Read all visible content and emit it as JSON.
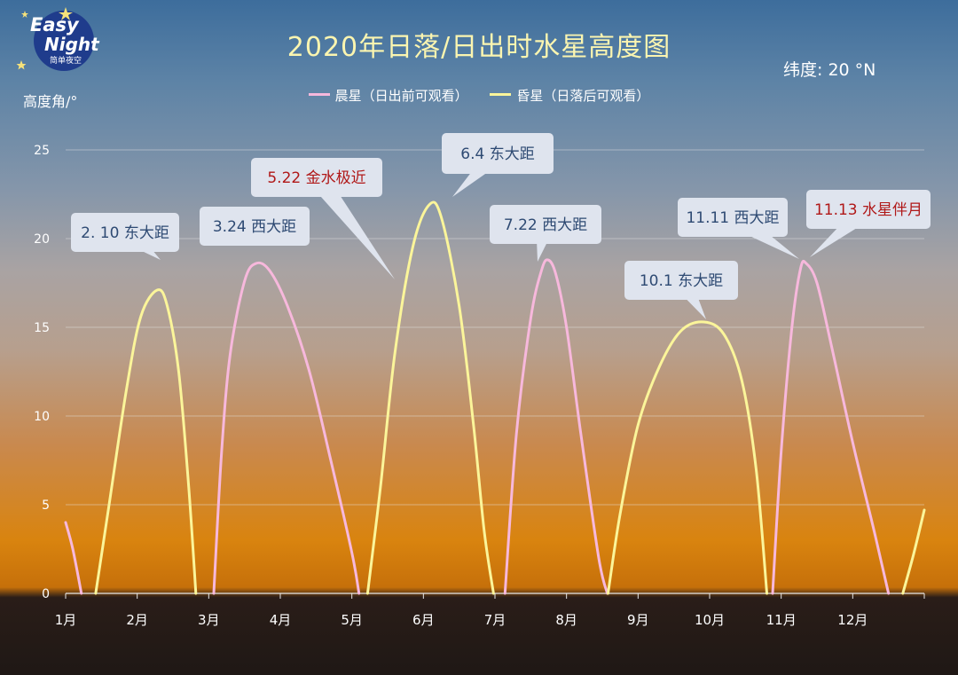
{
  "logo": {
    "line1": "Easy",
    "line2": "Night",
    "line3": "简单夜空"
  },
  "header": {
    "title": "2020年日落/日出时水星高度图",
    "latitude": "纬度:  20 °N",
    "ylabel": "高度角/°"
  },
  "legend": [
    {
      "label": "晨星（日出前可观看）",
      "color": "#f7b8dc"
    },
    {
      "label": "昏星（日落后可观看）",
      "color": "#fbf59a"
    }
  ],
  "chart_data": {
    "type": "line",
    "title": "2020年日落/日出时水星高度图",
    "ylabel": "高度角/°",
    "ylim": [
      0,
      25
    ],
    "xlim": [
      1,
      13
    ],
    "yticks": [
      0,
      5,
      10,
      15,
      20,
      25
    ],
    "xticks": [
      {
        "x": 1,
        "label": "1月"
      },
      {
        "x": 2,
        "label": "2月"
      },
      {
        "x": 3,
        "label": "3月"
      },
      {
        "x": 4,
        "label": "4月"
      },
      {
        "x": 5,
        "label": "5月"
      },
      {
        "x": 6,
        "label": "6月"
      },
      {
        "x": 7,
        "label": "7月"
      },
      {
        "x": 8,
        "label": "8月"
      },
      {
        "x": 9,
        "label": "9月"
      },
      {
        "x": 10,
        "label": "10月"
      },
      {
        "x": 11,
        "label": "11月"
      },
      {
        "x": 12,
        "label": "12月"
      }
    ],
    "series": [
      {
        "name": "晨星（日出前可观看）",
        "color": "#f7b8dc",
        "segments": [
          [
            [
              1.0,
              4.0
            ],
            [
              1.1,
              2.5
            ],
            [
              1.22,
              0
            ]
          ],
          [
            [
              3.07,
              0
            ],
            [
              3.18,
              8
            ],
            [
              3.3,
              13.5
            ],
            [
              3.5,
              17.6
            ],
            [
              3.66,
              18.6
            ],
            [
              3.85,
              18.2
            ],
            [
              4.1,
              16.2
            ],
            [
              4.4,
              12.6
            ],
            [
              4.7,
              7.6
            ],
            [
              5.0,
              2.3
            ],
            [
              5.1,
              0
            ]
          ],
          [
            [
              7.14,
              0
            ],
            [
              7.3,
              9
            ],
            [
              7.5,
              15.5
            ],
            [
              7.65,
              18.2
            ],
            [
              7.74,
              18.8
            ],
            [
              7.85,
              18.0
            ],
            [
              8.0,
              15.0
            ],
            [
              8.2,
              9.0
            ],
            [
              8.45,
              2.0
            ],
            [
              8.57,
              0
            ]
          ],
          [
            [
              10.88,
              0
            ],
            [
              11.0,
              8
            ],
            [
              11.15,
              15
            ],
            [
              11.27,
              18.3
            ],
            [
              11.35,
              18.6
            ],
            [
              11.5,
              17.5
            ],
            [
              11.7,
              14.0
            ],
            [
              12.0,
              8.5
            ],
            [
              12.3,
              3.5
            ],
            [
              12.5,
              0
            ]
          ]
        ]
      },
      {
        "name": "昏星（日落后可观看）",
        "color": "#fbf59a",
        "segments": [
          [
            [
              1.42,
              0
            ],
            [
              1.6,
              4.8
            ],
            [
              1.85,
              11.5
            ],
            [
              2.05,
              15.6
            ],
            [
              2.28,
              17.1
            ],
            [
              2.42,
              16.2
            ],
            [
              2.58,
              12.5
            ],
            [
              2.72,
              6.0
            ],
            [
              2.82,
              0
            ]
          ],
          [
            [
              5.22,
              0
            ],
            [
              5.4,
              6.0
            ],
            [
              5.6,
              13.5
            ],
            [
              5.85,
              19.5
            ],
            [
              6.08,
              21.9
            ],
            [
              6.25,
              21.2
            ],
            [
              6.5,
              16.2
            ],
            [
              6.7,
              9.5
            ],
            [
              6.85,
              3.5
            ],
            [
              6.98,
              0
            ]
          ],
          [
            [
              8.58,
              0
            ],
            [
              8.75,
              4.5
            ],
            [
              9.0,
              9.5
            ],
            [
              9.3,
              12.8
            ],
            [
              9.6,
              14.8
            ],
            [
              9.92,
              15.3
            ],
            [
              10.2,
              14.6
            ],
            [
              10.45,
              12.0
            ],
            [
              10.65,
              7.0
            ],
            [
              10.8,
              0
            ]
          ],
          [
            [
              12.7,
              0
            ],
            [
              12.85,
              2.2
            ],
            [
              13.0,
              4.7
            ]
          ]
        ]
      }
    ],
    "annotations": [
      {
        "text": "2. 10 东大距",
        "x": 2.28,
        "y": 17.1,
        "color": "#2e4a73"
      },
      {
        "text": "3.24 西大距",
        "x": 3.66,
        "y": 18.6,
        "color": "#2e4a73"
      },
      {
        "text": "5.22 金水极近",
        "x": 5.72,
        "y": 18.0,
        "color": "#b01818"
      },
      {
        "text": "6.4 东大距",
        "x": 6.08,
        "y": 21.9,
        "color": "#2e4a73"
      },
      {
        "text": "7.22 西大距",
        "x": 7.74,
        "y": 18.8,
        "color": "#2e4a73"
      },
      {
        "text": "10.1 东大距",
        "x": 9.92,
        "y": 15.3,
        "color": "#2e4a73"
      },
      {
        "text": "11.11 西大距",
        "x": 11.35,
        "y": 18.6,
        "color": "#2e4a73"
      },
      {
        "text": "11.13 水星伴月",
        "x": 11.35,
        "y": 18.6,
        "color": "#b01818"
      }
    ]
  }
}
